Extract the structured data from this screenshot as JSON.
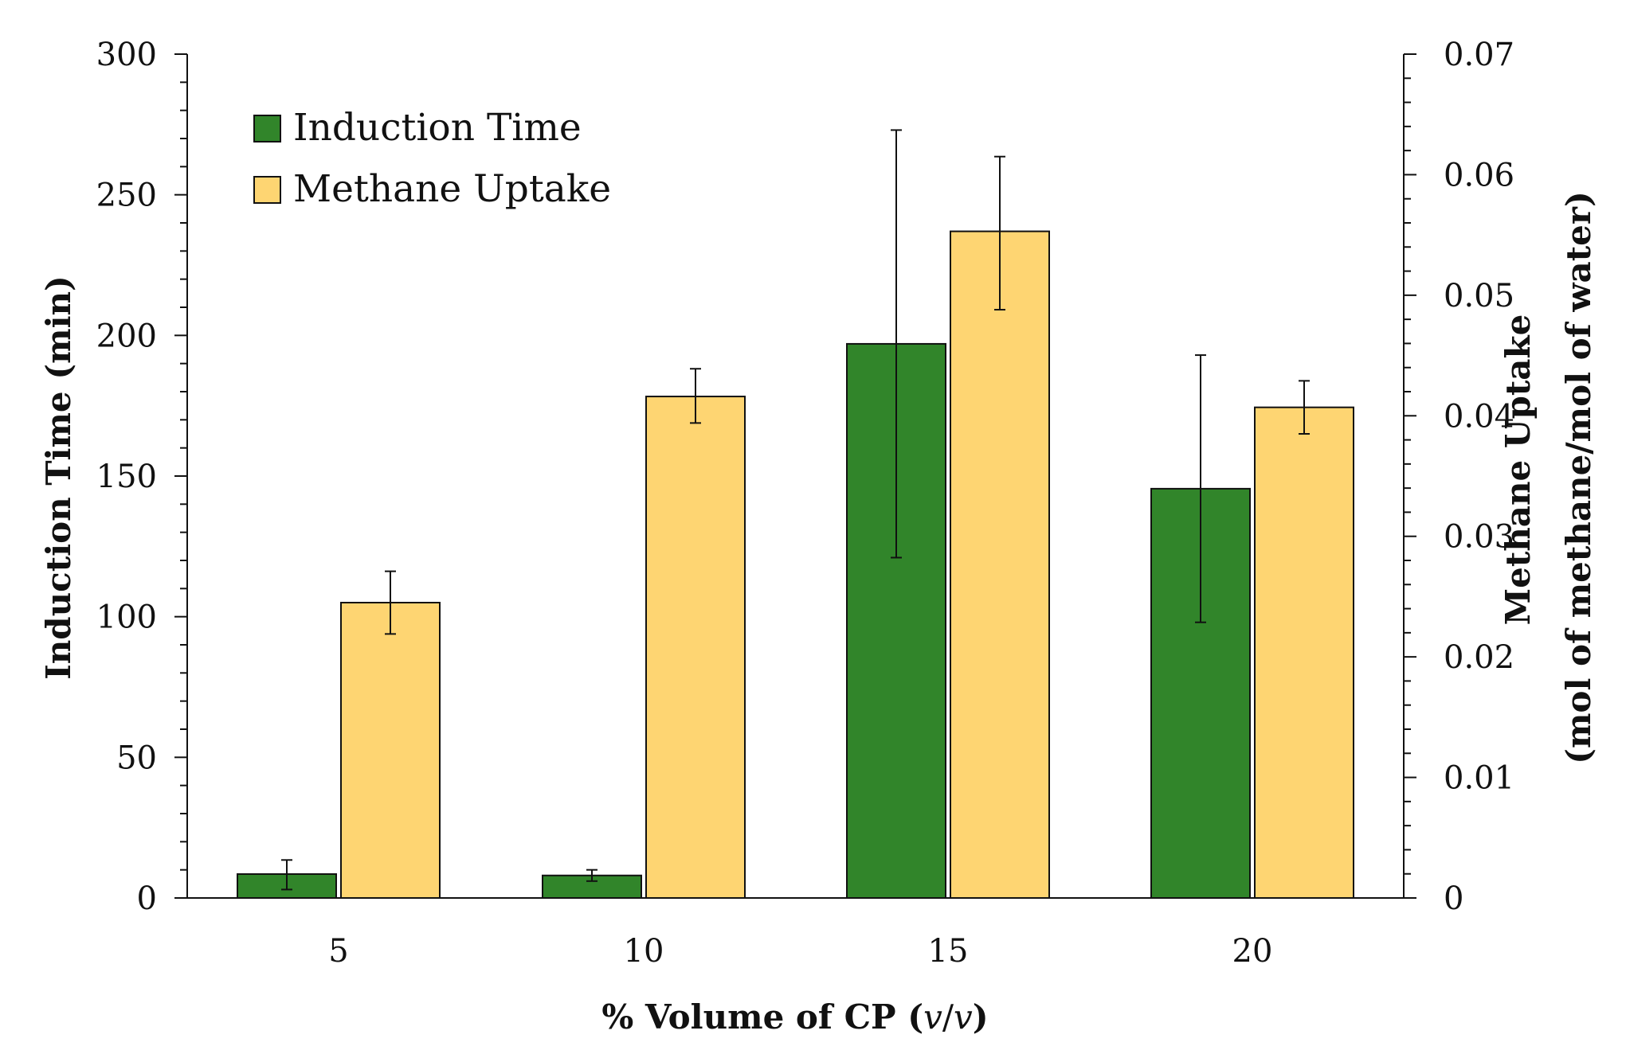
{
  "chart_data": {
    "type": "bar",
    "title": "",
    "xlabel": "% Volume of CP (v/v)",
    "xlabel_parts": {
      "prefix": "% Volume of CP (",
      "italic_a": "v",
      "slash": "/",
      "italic_b": "v",
      "suffix": ")"
    },
    "ylabel_left": "Induction Time (min)",
    "ylabel_right_line1": "Methane Uptake",
    "ylabel_right_line2": "(mol of methane/mol of water)",
    "categories": [
      "5",
      "10",
      "15",
      "20"
    ],
    "ylim_left": [
      0,
      300
    ],
    "ylim_right": [
      0,
      0.07
    ],
    "yticks_left": [
      "0",
      "50",
      "100",
      "150",
      "200",
      "250",
      "300"
    ],
    "yticks_right": [
      "0",
      "0.01",
      "0.02",
      "0.03",
      "0.04",
      "0.05",
      "0.06",
      "0.07"
    ],
    "series": [
      {
        "name": "Induction Time",
        "axis": "left",
        "color": "#31852a",
        "values": [
          8.5,
          8,
          197,
          145.5
        ],
        "error_low": [
          3,
          6,
          121,
          98
        ],
        "error_high": [
          13.5,
          10,
          273,
          193
        ]
      },
      {
        "name": "Methane Uptake",
        "axis": "right",
        "color": "#fed572",
        "values": [
          0.0245,
          0.0416,
          0.0553,
          0.0407
        ],
        "error_low": [
          0.0219,
          0.0394,
          0.0488,
          0.0385
        ],
        "error_high": [
          0.0271,
          0.0439,
          0.0615,
          0.0429
        ]
      }
    ],
    "legend": {
      "position": "top-left",
      "entries": [
        "Induction Time",
        "Methane Uptake"
      ]
    },
    "grid": false
  }
}
